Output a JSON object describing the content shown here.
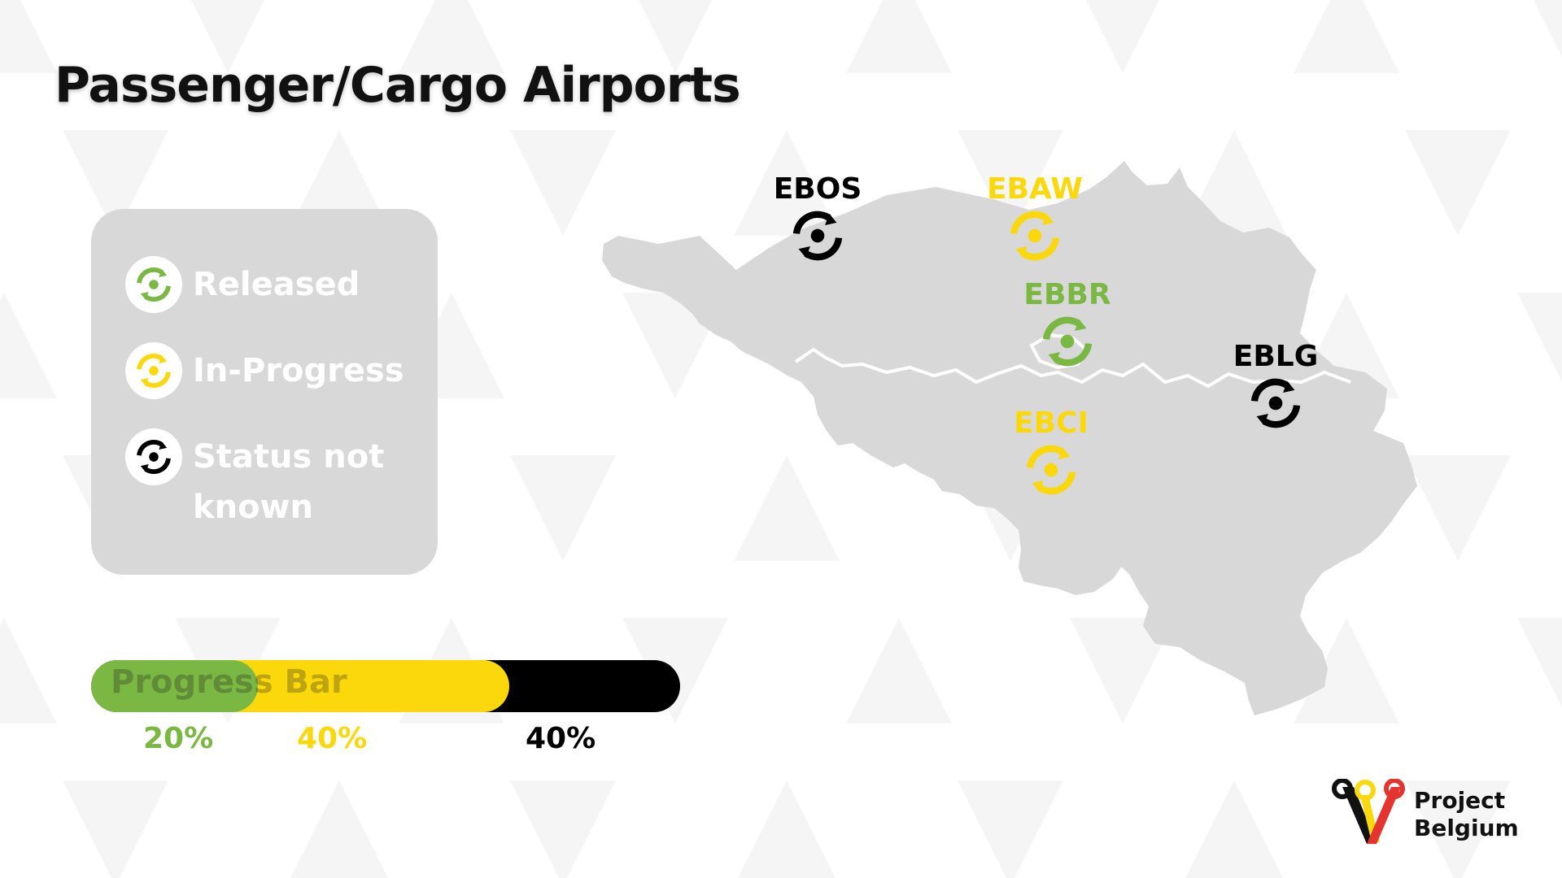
{
  "title": "Passenger/Cargo Airports",
  "colors": {
    "released": "#7ab743",
    "in_progress": "#fbd80c",
    "unknown": "#000000",
    "map_fill": "#d8d8d8",
    "legend_bg": "#d8d8d8"
  },
  "legend": {
    "items": [
      {
        "label": "Released",
        "status": "released",
        "icon": "status-ring-icon"
      },
      {
        "label": "In-Progress",
        "status": "in_progress",
        "icon": "status-ring-icon"
      },
      {
        "label": "Status not known",
        "status": "unknown",
        "icon": "status-ring-icon"
      }
    ]
  },
  "progress": {
    "label": "Progress Bar",
    "released_fraction": 0.2,
    "in_progress_fraction": 0.4,
    "unknown_fraction": 0.4,
    "released_pct": "20%",
    "in_progress_pct": "40%",
    "unknown_pct": "40%"
  },
  "airports": [
    {
      "code": "EBOS",
      "status": "unknown"
    },
    {
      "code": "EBAW",
      "status": "in_progress"
    },
    {
      "code": "EBBR",
      "status": "released"
    },
    {
      "code": "EBLG",
      "status": "unknown"
    },
    {
      "code": "EBCI",
      "status": "in_progress"
    }
  ],
  "logo": {
    "line1": "Project",
    "line2": "Belgium",
    "icon": "wrench-v-logo-icon"
  }
}
